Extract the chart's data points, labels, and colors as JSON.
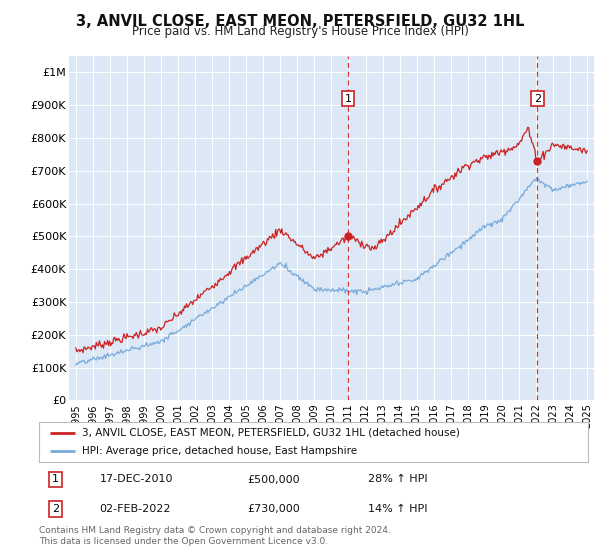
{
  "title": "3, ANVIL CLOSE, EAST MEON, PETERSFIELD, GU32 1HL",
  "subtitle": "Price paid vs. HM Land Registry's House Price Index (HPI)",
  "ylim": [
    0,
    1050000
  ],
  "yticks": [
    0,
    100000,
    200000,
    300000,
    400000,
    500000,
    600000,
    700000,
    800000,
    900000,
    1000000
  ],
  "ytick_labels": [
    "£0",
    "£100K",
    "£200K",
    "£300K",
    "£400K",
    "£500K",
    "£600K",
    "£700K",
    "£800K",
    "£900K",
    "£1M"
  ],
  "xlim_start": 1994.6,
  "xlim_end": 2025.4,
  "plot_bg_color": "#dce8f5",
  "red_line_color": "#cc2222",
  "blue_line_color": "#7aabdc",
  "marker1_date": 2010.96,
  "marker1_value": 500000,
  "marker2_date": 2022.08,
  "marker2_value": 730000,
  "legend_label1": "3, ANVIL CLOSE, EAST MEON, PETERSFIELD, GU32 1HL (detached house)",
  "legend_label2": "HPI: Average price, detached house, East Hampshire",
  "marker1_text": "17-DEC-2010",
  "marker1_price": "£500,000",
  "marker1_hpi": "28% ↑ HPI",
  "marker2_text": "02-FEB-2022",
  "marker2_price": "£730,000",
  "marker2_hpi": "14% ↑ HPI",
  "footer": "Contains HM Land Registry data © Crown copyright and database right 2024.\nThis data is licensed under the Open Government Licence v3.0.",
  "xticks": [
    1995,
    1996,
    1997,
    1998,
    1999,
    2000,
    2001,
    2002,
    2003,
    2004,
    2005,
    2006,
    2007,
    2008,
    2009,
    2010,
    2011,
    2012,
    2013,
    2014,
    2015,
    2016,
    2017,
    2018,
    2019,
    2020,
    2021,
    2022,
    2023,
    2024,
    2025
  ]
}
